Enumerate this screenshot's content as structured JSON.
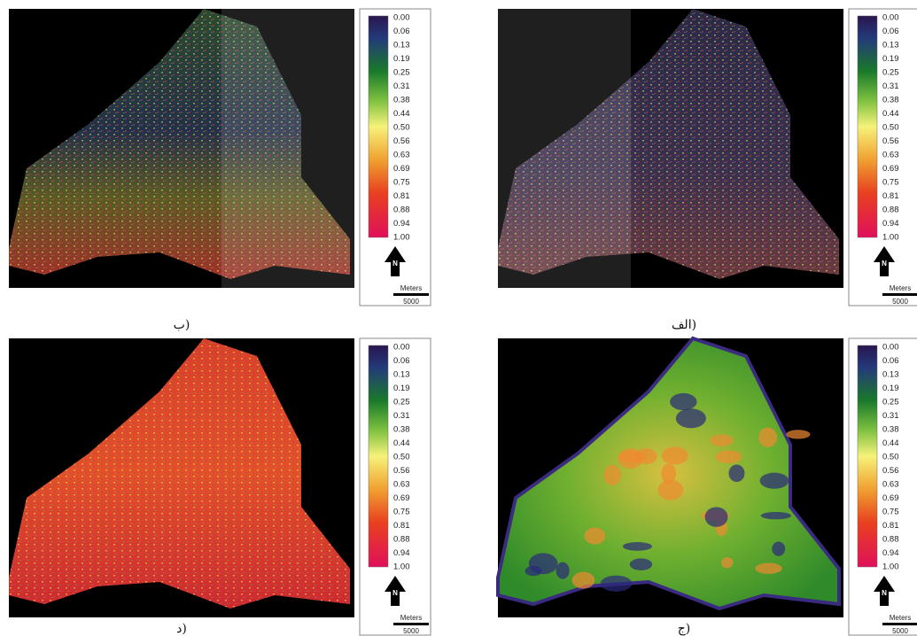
{
  "panels": [
    {
      "caption": "ب)",
      "legend": [
        "0.00",
        "0.06",
        "0.13",
        "0.19",
        "0.25",
        "0.31",
        "0.38",
        "0.44",
        "0.50",
        "0.56",
        "0.63",
        "0.69",
        "0.75",
        "0.81",
        "0.88",
        "0.94",
        "1.00"
      ],
      "north": "N",
      "scale_unit": "Meters",
      "scale_value": "5000"
    },
    {
      "caption": "الف)",
      "legend": [
        "0.00",
        "0.06",
        "0.13",
        "0.19",
        "0.25",
        "0.31",
        "0.38",
        "0.44",
        "0.50",
        "0.56",
        "0.63",
        "0.69",
        "0.75",
        "0.81",
        "0.88",
        "0.94",
        "1.00"
      ],
      "north": "N",
      "scale_unit": "Meters",
      "scale_value": "5000"
    },
    {
      "caption": "د)",
      "legend": [
        "0.00",
        "0.06",
        "0.13",
        "0.19",
        "0.25",
        "0.31",
        "0.38",
        "0.44",
        "0.50",
        "0.56",
        "0.63",
        "0.69",
        "0.75",
        "0.81",
        "0.88",
        "0.94",
        "1.00"
      ],
      "north": "N",
      "scale_unit": "Meters",
      "scale_value": "5000"
    },
    {
      "caption": "ج)",
      "legend": [
        "0.00",
        "0.06",
        "0.13",
        "0.19",
        "0.25",
        "0.31",
        "0.38",
        "0.44",
        "0.50",
        "0.56",
        "0.63",
        "0.69",
        "0.75",
        "0.81",
        "0.88",
        "0.94",
        "1.00"
      ],
      "north": "N",
      "scale_unit": "Meters",
      "scale_value": "5000"
    }
  ]
}
